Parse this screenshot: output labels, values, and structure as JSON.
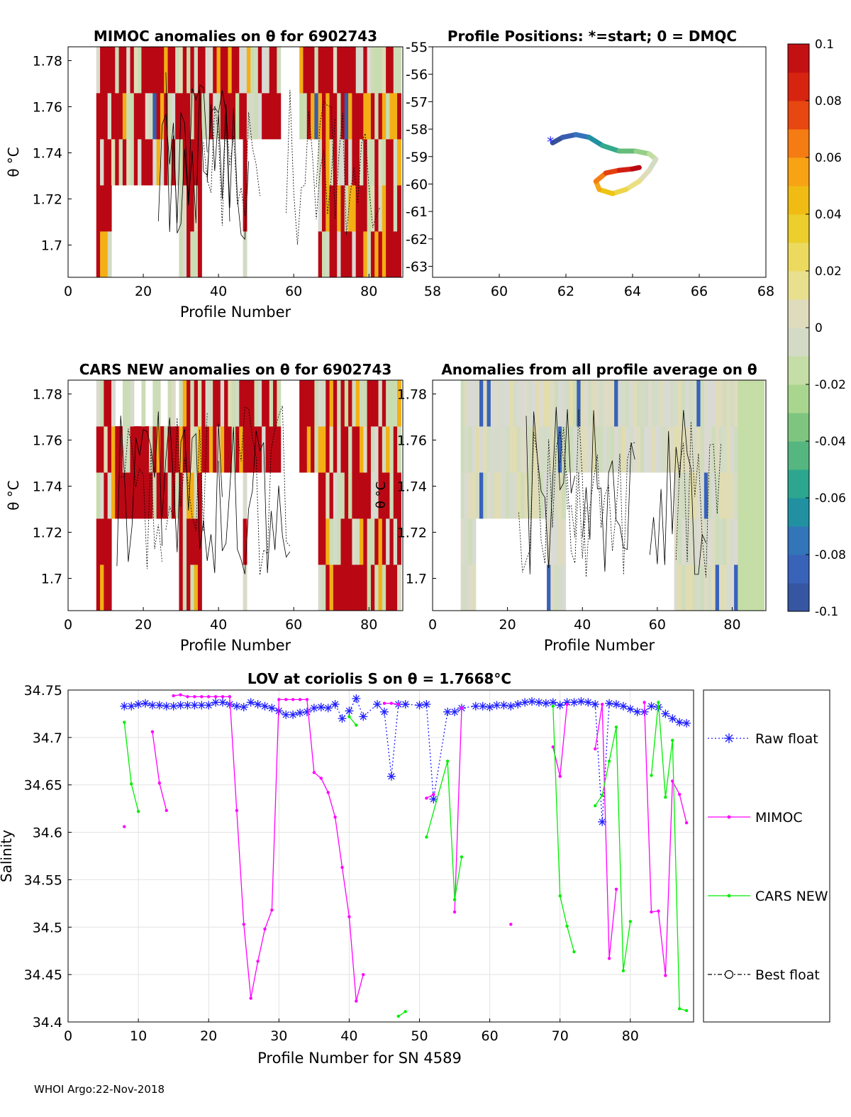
{
  "footer": "WHOI Argo:22-Nov-2018",
  "colors": {
    "raw": "#1f1fff",
    "mimoc": "#ff00ff",
    "cars": "#00ee00",
    "best": "#000000",
    "grid": "#e2e2e2",
    "fill_neutral": "#d5d8d0"
  },
  "chart_data": [
    {
      "id": "mimoc_anom",
      "type": "heatmap",
      "title": "MIMOC anomalies on θ  for 6902743",
      "xlabel": "Profile Number",
      "ylabel": "θ °C",
      "xlim": [
        0,
        89
      ],
      "ylim": [
        1.686,
        1.786
      ],
      "xticks": [
        "0",
        "20",
        "40",
        "60",
        "80"
      ],
      "yticks": [
        "1.7",
        "1.72",
        "1.74",
        "1.76",
        "1.78"
      ]
    },
    {
      "id": "positions",
      "type": "line",
      "title": "Profile Positions: *=start; 0 = DMQC",
      "xlim": [
        58,
        68
      ],
      "ylim": [
        -63.4,
        -55
      ],
      "xticks": [
        "58",
        "60",
        "62",
        "64",
        "66",
        "68"
      ],
      "yticks": [
        "-55",
        "-56",
        "-57",
        "-58",
        "-59",
        "-60",
        "-61",
        "-62",
        "-63"
      ],
      "track_lon": [
        61.6,
        61.9,
        62.3,
        62.7,
        63.1,
        63.6,
        64.1,
        64.5,
        64.7,
        64.5,
        64.2,
        63.8,
        63.4,
        63.0,
        62.9,
        63.2,
        63.6,
        64.0,
        64.2
      ],
      "track_lat": [
        -58.5,
        -58.3,
        -58.2,
        -58.3,
        -58.6,
        -58.8,
        -58.8,
        -58.9,
        -59.1,
        -59.5,
        -59.9,
        -60.2,
        -60.35,
        -60.2,
        -59.9,
        -59.6,
        -59.5,
        -59.45,
        -59.4
      ]
    },
    {
      "id": "cars_anom",
      "type": "heatmap",
      "title": "CARS NEW anomalies on θ for 6902743",
      "xlabel": "Profile Number",
      "ylabel": "θ °C",
      "xlim": [
        0,
        89
      ],
      "ylim": [
        1.686,
        1.786
      ],
      "xticks": [
        "0",
        "20",
        "40",
        "60",
        "80"
      ],
      "yticks": [
        "1.7",
        "1.72",
        "1.74",
        "1.76",
        "1.78"
      ]
    },
    {
      "id": "avg_anom",
      "type": "heatmap",
      "title": "Anomalies from all profile average on θ",
      "xlabel": "Profile Number",
      "ylabel": "θ °C",
      "xlim": [
        0,
        89
      ],
      "ylim": [
        1.686,
        1.786
      ],
      "xticks": [
        "0",
        "20",
        "40",
        "60",
        "80"
      ],
      "yticks": [
        "1.7",
        "1.72",
        "1.74",
        "1.76",
        "1.78"
      ]
    },
    {
      "id": "colorbar",
      "type": "heatmap",
      "range": [
        -0.1,
        0.1
      ],
      "ticks": [
        "0.1",
        "0.08",
        "0.06",
        "0.04",
        "0.02",
        "0",
        "-0.02",
        "-0.04",
        "-0.06",
        "-0.08",
        "-0.1"
      ]
    },
    {
      "id": "lov",
      "type": "line",
      "title": "LOV at coriolis S on θ = 1.7668°C",
      "xlabel": "Profile Number for SN 4589",
      "ylabel": "Salinity",
      "xlim": [
        0,
        89
      ],
      "ylim": [
        34.4,
        34.75
      ],
      "xticks": [
        "0",
        "10",
        "20",
        "30",
        "40",
        "50",
        "60",
        "70",
        "80"
      ],
      "yticks": [
        "34.4",
        "34.45",
        "34.5",
        "34.55",
        "34.6",
        "34.65",
        "34.7",
        "34.75"
      ],
      "legend": [
        "Raw float",
        "MIMOC",
        "CARS NEW",
        "Best float"
      ],
      "legend_position": "right-outside",
      "series": [
        {
          "name": "Raw float",
          "x": [
            8,
            9,
            10,
            11,
            12,
            13,
            14,
            15,
            16,
            17,
            18,
            19,
            20,
            21,
            22,
            23,
            24,
            25,
            26,
            27,
            28,
            29,
            30,
            31,
            32,
            33,
            34,
            35,
            36,
            37,
            38,
            39,
            40,
            41,
            42,
            44,
            45,
            46,
            47,
            48,
            50,
            51,
            52,
            54,
            55,
            56,
            58,
            59,
            60,
            61,
            62,
            63,
            64,
            65,
            66,
            67,
            68,
            69,
            70,
            71,
            72,
            73,
            74,
            75,
            76,
            77,
            78,
            79,
            80,
            81,
            82,
            83,
            84,
            85,
            86,
            87,
            88
          ],
          "y": [
            34.733,
            34.733,
            34.735,
            34.736,
            34.734,
            34.734,
            34.733,
            34.733,
            34.734,
            34.734,
            34.734,
            34.734,
            34.734,
            34.737,
            34.737,
            34.735,
            34.733,
            34.732,
            34.737,
            34.735,
            34.733,
            34.731,
            34.728,
            34.724,
            34.724,
            34.726,
            34.727,
            34.731,
            34.732,
            34.731,
            34.735,
            34.72,
            34.728,
            34.741,
            34.722,
            34.735,
            34.727,
            34.659,
            34.735,
            34.735,
            34.734,
            34.735,
            34.635,
            34.727,
            34.727,
            34.731,
            34.733,
            34.733,
            34.732,
            34.734,
            34.734,
            34.733,
            34.735,
            34.737,
            34.738,
            34.737,
            34.736,
            34.737,
            34.734,
            34.737,
            34.737,
            34.738,
            34.737,
            34.735,
            34.611,
            34.736,
            34.735,
            34.733,
            34.73,
            34.727,
            34.727,
            34.733,
            34.732,
            34.725,
            34.72,
            34.716,
            34.715
          ]
        },
        {
          "name": "MIMOC",
          "segments": [
            {
              "x": [
                8
              ],
              "y": [
                34.606
              ]
            },
            {
              "x": [
                12,
                13,
                14
              ],
              "y": [
                34.706,
                34.652,
                34.623
              ]
            },
            {
              "x": [
                15,
                16,
                17,
                18,
                19,
                20,
                21,
                22,
                23,
                24,
                25,
                26,
                27,
                28,
                29,
                30,
                31,
                32,
                33,
                34,
                35,
                36,
                37,
                38,
                39,
                40,
                41,
                42
              ],
              "y": [
                34.744,
                34.745,
                34.743,
                34.743,
                34.743,
                34.743,
                34.743,
                34.743,
                34.743,
                34.623,
                34.503,
                34.425,
                34.464,
                34.498,
                34.518,
                34.74,
                34.74,
                34.74,
                34.74,
                34.74,
                34.663,
                34.657,
                34.642,
                34.616,
                34.563,
                34.511,
                34.422,
                34.45
              ]
            },
            {
              "x": [
                45,
                46,
                47
              ],
              "y": [
                34.736,
                34.736,
                34.735
              ]
            },
            {
              "x": [
                51,
                52
              ],
              "y": [
                34.636,
                34.64
              ]
            },
            {
              "x": [
                55,
                56
              ],
              "y": [
                34.516,
                34.731
              ]
            },
            {
              "x": [
                63
              ],
              "y": [
                34.503
              ]
            },
            {
              "x": [
                69,
                70,
                71
              ],
              "y": [
                34.69,
                34.659,
                34.735
              ]
            },
            {
              "x": [
                75,
                76,
                77,
                78
              ],
              "y": [
                34.688,
                34.735,
                34.467,
                34.54
              ]
            },
            {
              "x": [
                82,
                83,
                84,
                85,
                86,
                87,
                88
              ],
              "y": [
                34.737,
                34.516,
                34.517,
                34.449,
                34.654,
                34.64,
                34.61
              ]
            }
          ]
        },
        {
          "name": "CARS NEW",
          "segments": [
            {
              "x": [
                8,
                9,
                10
              ],
              "y": [
                34.716,
                34.651,
                34.622
              ]
            },
            {
              "x": [
                40,
                41
              ],
              "y": [
                34.722,
                34.713
              ]
            },
            {
              "x": [
                47,
                48
              ],
              "y": [
                34.406,
                34.411
              ]
            },
            {
              "x": [
                51,
                54,
                55,
                56
              ],
              "y": [
                34.595,
                34.675,
                34.529,
                34.574
              ]
            },
            {
              "x": [
                69,
                70,
                71,
                72
              ],
              "y": [
                34.733,
                34.533,
                34.501,
                34.474
              ]
            },
            {
              "x": [
                75,
                76,
                77,
                78,
                79,
                80
              ],
              "y": [
                34.628,
                34.639,
                34.675,
                34.711,
                34.454,
                34.506
              ]
            },
            {
              "x": [
                83,
                84,
                85,
                86,
                87,
                88
              ],
              "y": [
                34.66,
                34.737,
                34.637,
                34.697,
                34.414,
                34.412
              ]
            }
          ]
        },
        {
          "name": "Best float",
          "x": [],
          "y": []
        }
      ]
    }
  ]
}
